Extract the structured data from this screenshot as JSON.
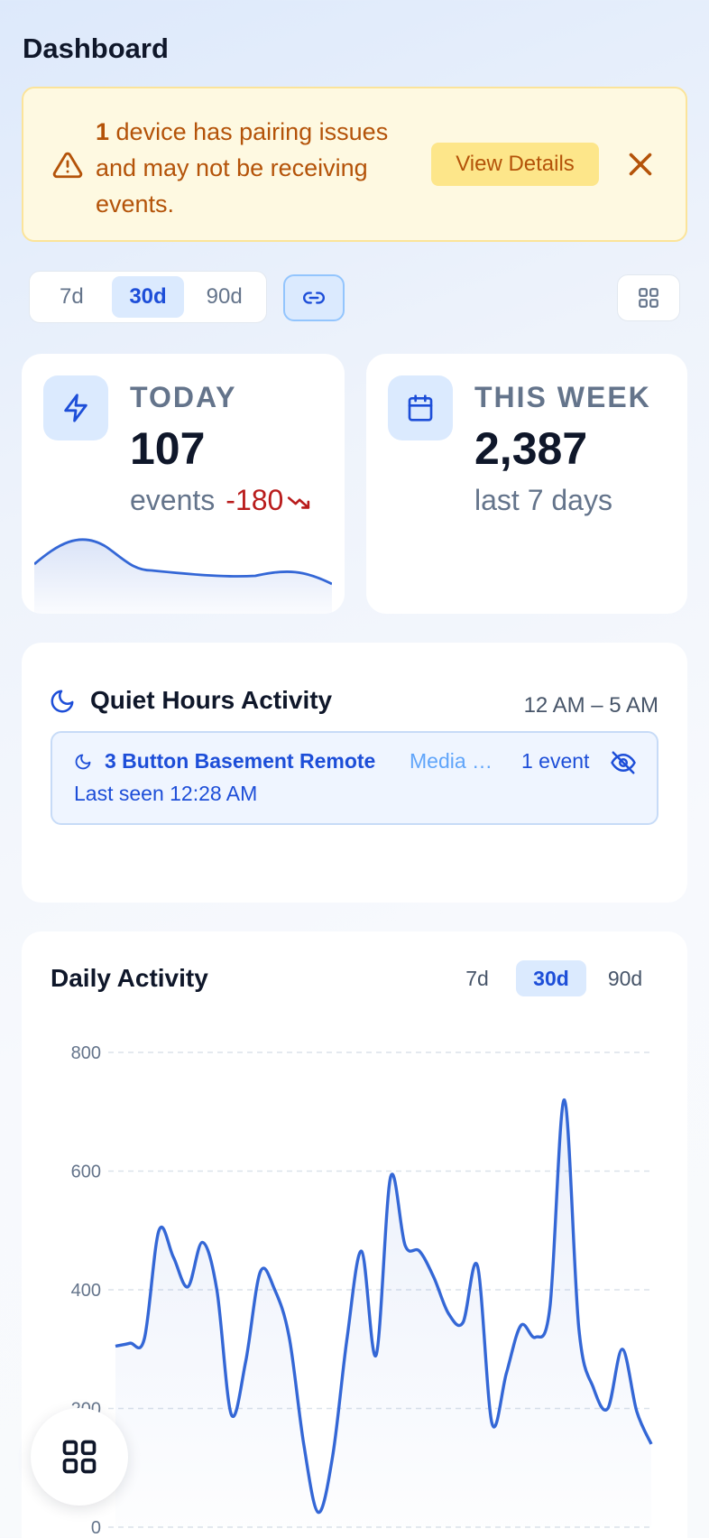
{
  "page": {
    "title": "Dashboard"
  },
  "alert": {
    "count": "1",
    "message": " device has pairing issues and may not be receiving events.",
    "view_label": "View Details",
    "warn_icon": "warning-triangle-icon",
    "close_icon": "close-icon"
  },
  "range": {
    "options": [
      "7d",
      "30d",
      "90d"
    ],
    "selected": "30d",
    "link_icon": "link-icon",
    "layout_icon": "grid-icon"
  },
  "stats": {
    "today": {
      "icon": "lightning-icon",
      "label": "TODAY",
      "value": "107",
      "unit": "events",
      "delta": "-180",
      "trend_icon": "trending-down-icon"
    },
    "week": {
      "icon": "calendar-icon",
      "label": "THIS WEEK",
      "value": "2,387",
      "sub": "last 7 days"
    }
  },
  "quiet": {
    "icon": "moon-icon",
    "title": "Quiet Hours Activity",
    "range": "12 AM – 5 AM",
    "items": [
      {
        "name": "3 Button Basement Remote",
        "type": "Media Controller",
        "count": "1 event",
        "last_seen": "Last seen 12:28 AM",
        "hide_icon": "eye-off-icon"
      }
    ]
  },
  "daily": {
    "title": "Daily Activity",
    "tabs": [
      "7d",
      "30d",
      "90d"
    ],
    "selected": "30d"
  },
  "fab": {
    "icon": "grid-icon"
  },
  "colors": {
    "accent": "#1d4ed8",
    "line": "#3467d6",
    "warning": "#b45309",
    "negative": "#b91c1c"
  },
  "chart_data": {
    "type": "area",
    "y_ticks": [
      "800",
      "600",
      "400",
      "200",
      "0"
    ],
    "ylim": [
      0,
      800
    ],
    "grid": true,
    "series": [
      {
        "values": [
          305,
          310,
          318,
          500,
          455,
          405,
          480,
          400,
          190,
          280,
          430,
          400,
          320,
          140,
          25,
          120,
          320,
          465,
          290,
          590,
          475,
          465,
          420,
          360,
          345,
          440,
          175,
          260,
          340,
          320,
          370,
          720,
          335,
          235,
          200,
          300,
          195,
          140
        ]
      }
    ]
  }
}
